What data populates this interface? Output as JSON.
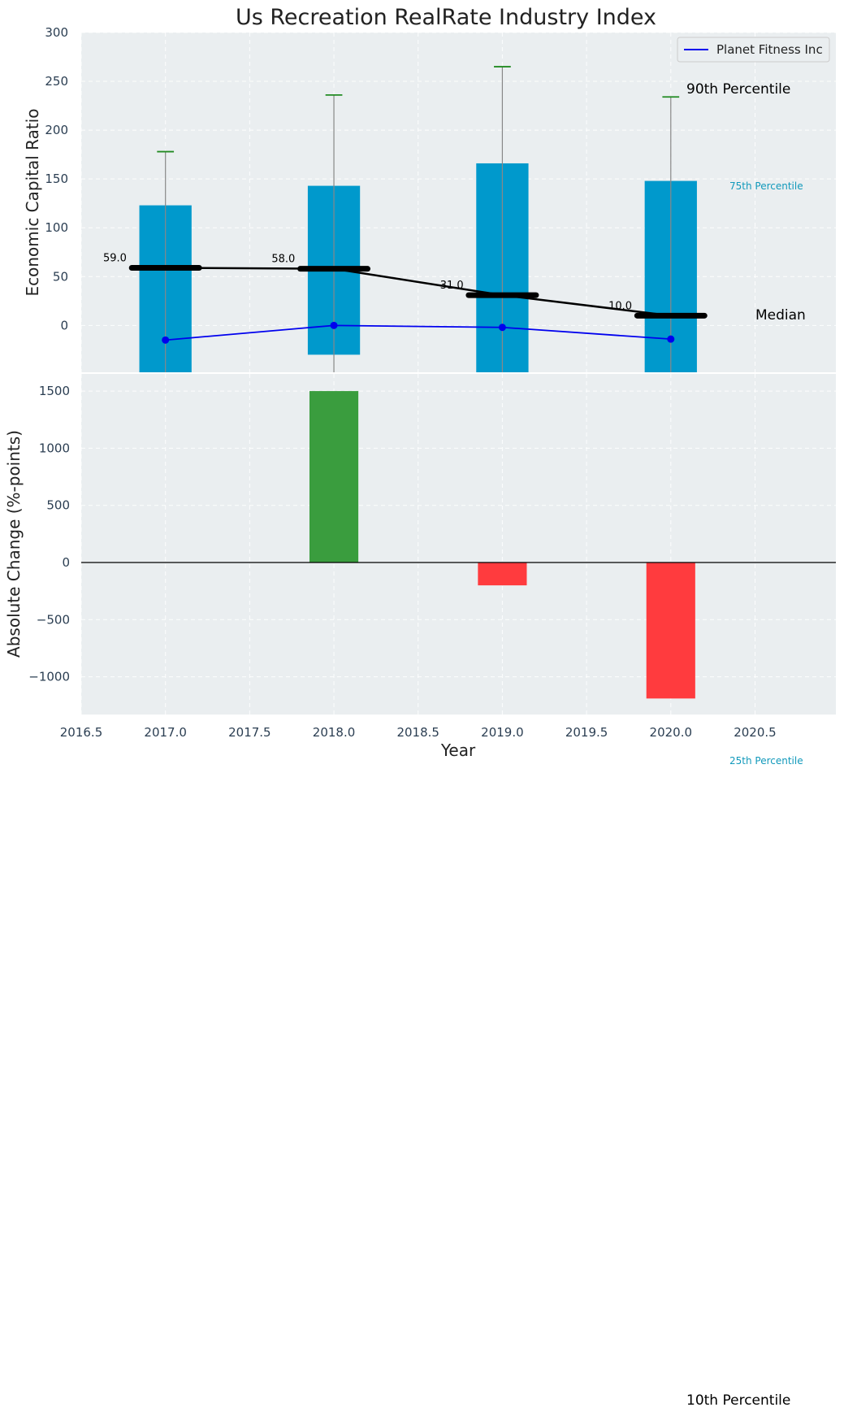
{
  "chart_data": {
    "type": "bar",
    "title": "Us Recreation RealRate Industry Index",
    "colors": {
      "panel_bg": "#eaeef0",
      "bar": "#0099cc",
      "whisker": "#888888",
      "cap": "#228b22",
      "median": "#000000",
      "company_line": "#0000ee",
      "increase": "#3a9d3e",
      "decrease": "#ff3b3e",
      "pct75_text": "#1199bb"
    },
    "years": [
      2017,
      2018,
      2019,
      2020
    ],
    "top": {
      "ylabel": "Economic Capital Ratio",
      "ylim": [
        -48,
        300
      ],
      "yticks": [
        0,
        50,
        100,
        150,
        200,
        250,
        300
      ],
      "bar_top_75th": [
        123,
        143,
        166,
        148
      ],
      "bar_bottom": [
        -48,
        -30,
        -48,
        -48
      ],
      "whisker_top_90th": [
        178,
        236,
        265,
        234
      ],
      "median_values": [
        59,
        58,
        31,
        10
      ],
      "median_labels": [
        "59.0",
        "58.0",
        "31.0",
        "10.0"
      ],
      "company": {
        "name": "Planet Fitness Inc",
        "values": [
          -15,
          0,
          -2,
          -14
        ]
      },
      "legend": [
        "Planet Fitness Inc"
      ]
    },
    "bottom": {
      "ylabel": "Absolute Change (%-points)",
      "ylim": [
        -1330,
        1650
      ],
      "yticks": [
        -1000,
        -500,
        0,
        500,
        1000,
        1500
      ],
      "ytick_labels": [
        "−1000",
        "−500",
        "0",
        "500",
        "1000",
        "1500"
      ],
      "changes": [
        null,
        1500,
        -200,
        -1190
      ]
    },
    "xaxis": {
      "xlabel": "Year",
      "xlim": [
        2016.5,
        2020.98
      ],
      "xticks": [
        2016.5,
        2017.0,
        2017.5,
        2018.0,
        2018.5,
        2019.0,
        2019.5,
        2020.0,
        2020.5
      ],
      "xtick_labels": [
        "2016.5",
        "2017.0",
        "2017.5",
        "2018.0",
        "2018.5",
        "2019.0",
        "2019.5",
        "2020.0",
        "2020.5"
      ]
    },
    "annotations": {
      "p90": "90th Percentile",
      "p75": "75th Percentile",
      "median": "Median",
      "p25": "25th Percentile",
      "p10": "10th Percentile"
    }
  }
}
